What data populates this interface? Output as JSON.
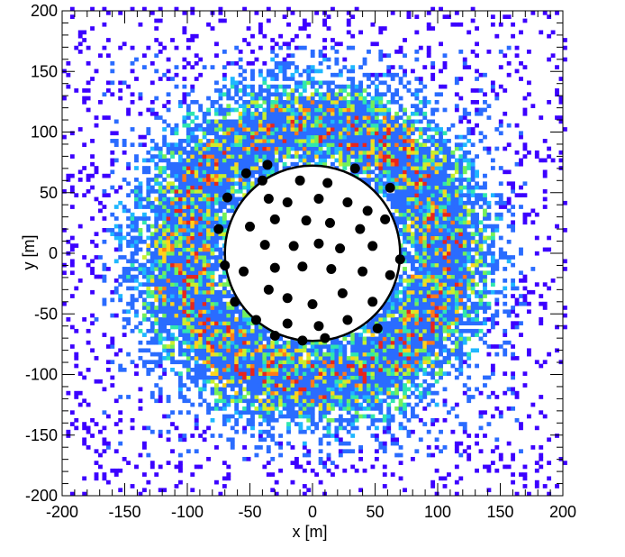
{
  "chart_data": {
    "type": "heatmap",
    "title": "",
    "xlabel": "x [m]",
    "ylabel": "y [m]",
    "xlim": [
      -200,
      200
    ],
    "ylim": [
      -200,
      200
    ],
    "x_ticks": [
      -200,
      -150,
      -100,
      -50,
      0,
      50,
      100,
      150,
      200
    ],
    "y_ticks": [
      -200,
      -150,
      -100,
      -50,
      0,
      50,
      100,
      150,
      200
    ],
    "grid": false,
    "legend": "none",
    "colormap": [
      "#3c00ff",
      "#2a6cff",
      "#1fb7ff",
      "#2fe6b0",
      "#73f05a",
      "#c9ef2e",
      "#ffd21e",
      "#ff7a1a",
      "#e8251c"
    ],
    "density_model": {
      "description_of_values": "annular ring of counts around array",
      "ring_radius": 105,
      "ring_width": 28,
      "background_level": 0.12,
      "peak_level": 1.0
    },
    "circle": {
      "center": [
        0,
        0
      ],
      "radius": 70,
      "color": "#000000"
    },
    "points": [
      [
        -36,
        73
      ],
      [
        -40,
        60
      ],
      [
        -53,
        66
      ],
      [
        -10,
        60
      ],
      [
        12,
        58
      ],
      [
        34,
        70
      ],
      [
        62,
        54
      ],
      [
        -68,
        46
      ],
      [
        -35,
        45
      ],
      [
        -20,
        42
      ],
      [
        5,
        45
      ],
      [
        28,
        42
      ],
      [
        44,
        35
      ],
      [
        -75,
        20
      ],
      [
        -50,
        22
      ],
      [
        -30,
        28
      ],
      [
        -5,
        27
      ],
      [
        14,
        25
      ],
      [
        38,
        20
      ],
      [
        58,
        28
      ],
      [
        -70,
        -10
      ],
      [
        -38,
        7
      ],
      [
        -15,
        6
      ],
      [
        5,
        8
      ],
      [
        22,
        4
      ],
      [
        48,
        6
      ],
      [
        70,
        -5
      ],
      [
        -55,
        -15
      ],
      [
        -30,
        -12
      ],
      [
        -8,
        -11
      ],
      [
        15,
        -13
      ],
      [
        40,
        -15
      ],
      [
        62,
        -18
      ],
      [
        -62,
        -40
      ],
      [
        -35,
        -30
      ],
      [
        -20,
        -37
      ],
      [
        0,
        -42
      ],
      [
        24,
        -33
      ],
      [
        48,
        -40
      ],
      [
        -45,
        -55
      ],
      [
        -20,
        -58
      ],
      [
        5,
        -60
      ],
      [
        28,
        -55
      ],
      [
        52,
        -62
      ],
      [
        -8,
        -72
      ],
      [
        10,
        -70
      ],
      [
        -30,
        -68
      ]
    ],
    "point_color": "#000000"
  }
}
